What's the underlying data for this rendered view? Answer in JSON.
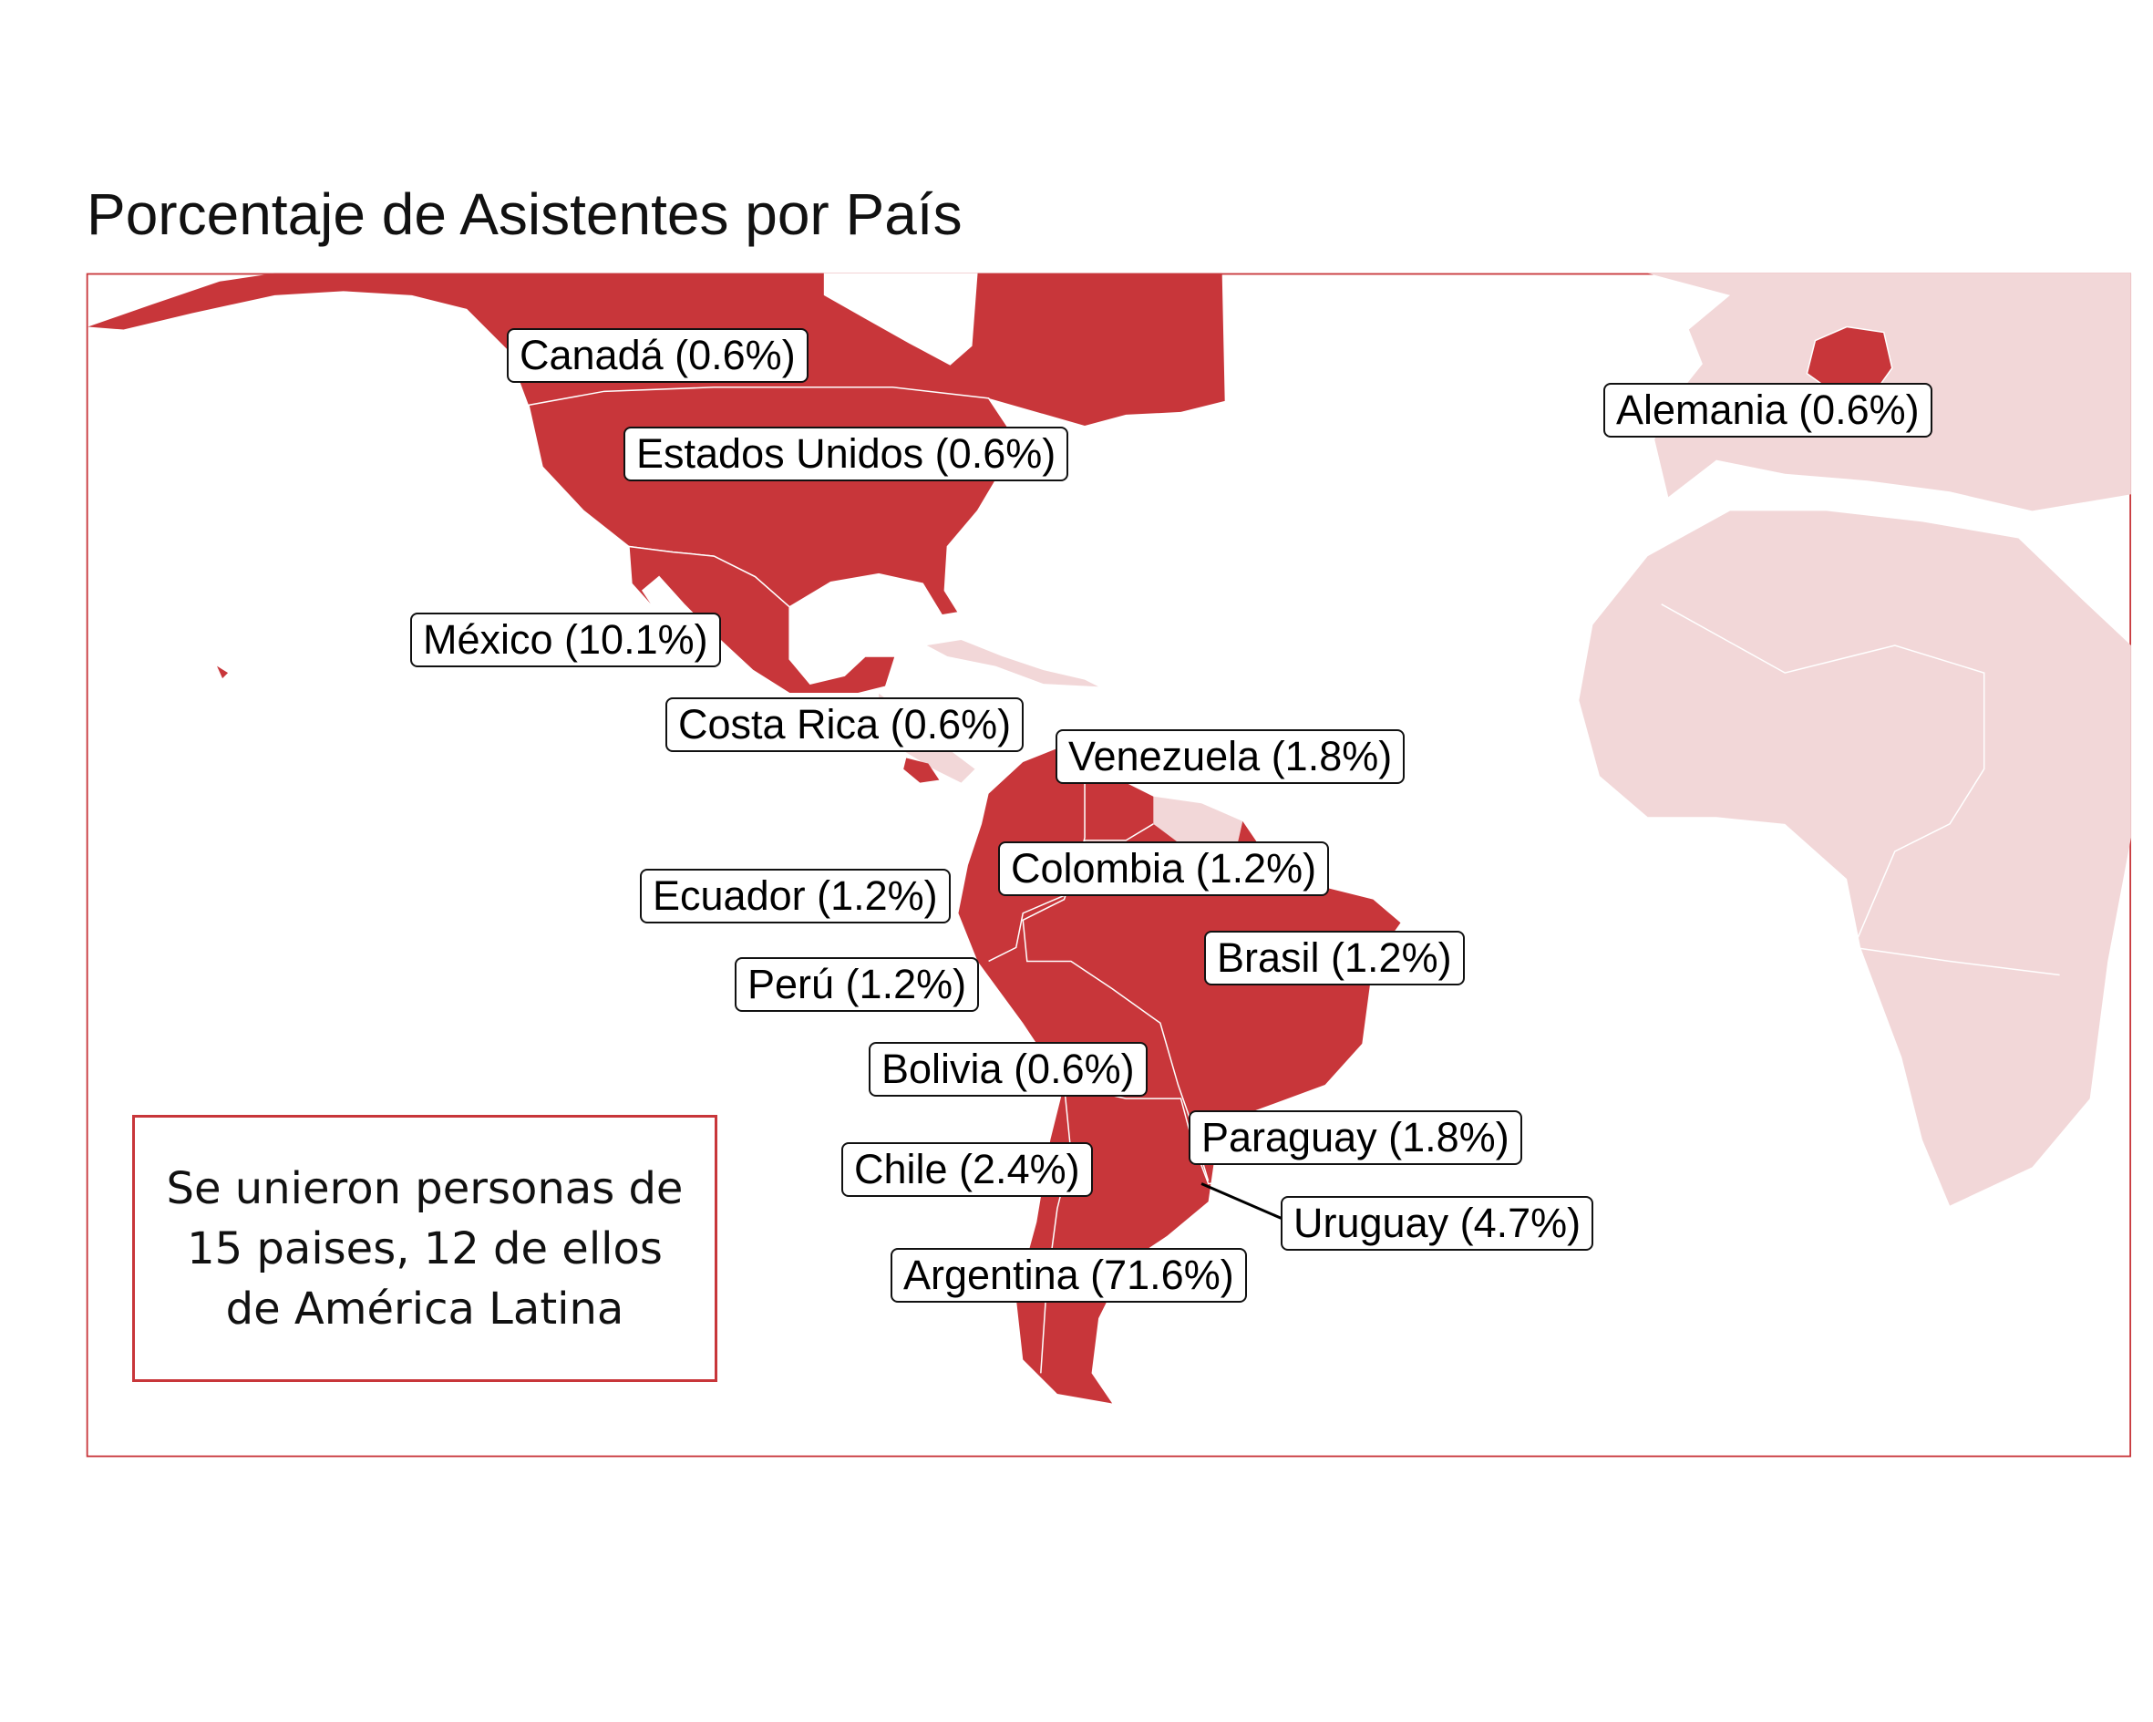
{
  "title": "Porcentaje de Asistentes por País",
  "colors": {
    "highlight": "#c8363a",
    "other": "#f2d7d8",
    "frame": "#c8363a",
    "border": "#ffffff"
  },
  "countries": [
    {
      "name": "Canadá",
      "label": "Canadá (0.6%)",
      "pct": 0.6
    },
    {
      "name": "Estados Unidos",
      "label": "Estados Unidos (0.6%)",
      "pct": 0.6
    },
    {
      "name": "México",
      "label": "México (10.1%)",
      "pct": 10.1
    },
    {
      "name": "Costa Rica",
      "label": "Costa Rica (0.6%)",
      "pct": 0.6
    },
    {
      "name": "Venezuela",
      "label": "Venezuela (1.8%)",
      "pct": 1.8
    },
    {
      "name": "Colombia",
      "label": "Colombia (1.2%)",
      "pct": 1.2
    },
    {
      "name": "Ecuador",
      "label": "Ecuador (1.2%)",
      "pct": 1.2
    },
    {
      "name": "Brasil",
      "label": "Brasil (1.2%)",
      "pct": 1.2
    },
    {
      "name": "Perú",
      "label": "Perú (1.2%)",
      "pct": 1.2
    },
    {
      "name": "Bolivia",
      "label": "Bolivia (0.6%)",
      "pct": 0.6
    },
    {
      "name": "Paraguay",
      "label": "Paraguay (1.8%)",
      "pct": 1.8
    },
    {
      "name": "Chile",
      "label": "Chile (2.4%)",
      "pct": 2.4
    },
    {
      "name": "Uruguay",
      "label": "Uruguay (4.7%)",
      "pct": 4.7
    },
    {
      "name": "Argentina",
      "label": "Argentina (71.6%)",
      "pct": 71.6
    },
    {
      "name": "Alemania",
      "label": "Alemania (0.6%)",
      "pct": 0.6
    }
  ],
  "caption": "Se unieron personas de 15 paises, 12 de ellos de América Latina"
}
